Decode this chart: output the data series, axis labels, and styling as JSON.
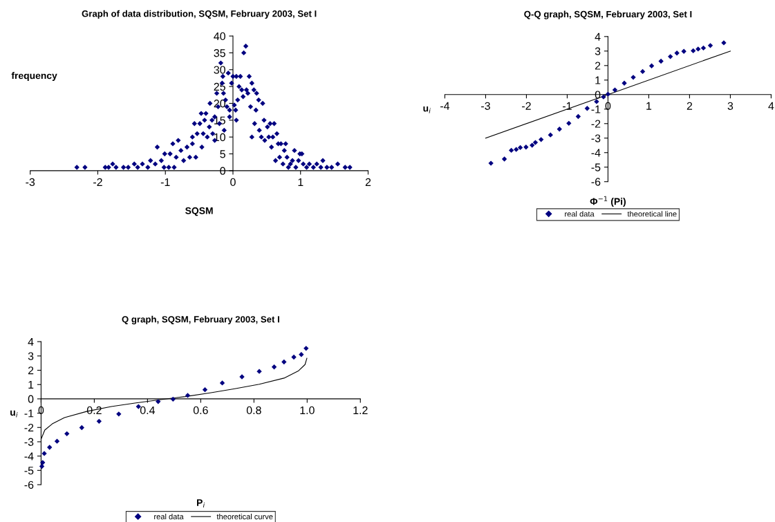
{
  "chart_data": [
    {
      "type": "scatter",
      "title": "Graph of data distribution, SQSM, February 2003, Set I",
      "xlabel": "SQSM",
      "ylabel": "frequency",
      "xlim": [
        -3,
        2
      ],
      "xticks": [
        -3,
        -2,
        -1,
        0,
        1,
        2
      ],
      "ylim": [
        0,
        40
      ],
      "yticks": [
        0,
        5,
        10,
        15,
        20,
        25,
        30,
        35,
        40
      ],
      "series": [
        {
          "color": "#000080",
          "marker": "diamond",
          "x": [
            -2.31,
            -2.19,
            -1.89,
            -1.84,
            -1.78,
            -1.73,
            -1.62,
            -1.55,
            -1.46,
            -1.41,
            -1.34,
            -1.26,
            -1.22,
            -1.15,
            -1.12,
            -1.06,
            -1.02,
            -1.01,
            -0.95,
            -0.93,
            -0.89,
            -0.87,
            -0.84,
            -0.81,
            -0.77,
            -0.73,
            -0.68,
            -0.64,
            -0.6,
            -0.6,
            -0.57,
            -0.55,
            -0.53,
            -0.49,
            -0.47,
            -0.46,
            -0.44,
            -0.42,
            -0.4,
            -0.38,
            -0.35,
            -0.34,
            -0.31,
            -0.3,
            -0.27,
            -0.27,
            -0.24,
            -0.22,
            -0.2,
            -0.18,
            -0.16,
            -0.15,
            -0.14,
            -0.13,
            -0.11,
            -0.09,
            -0.07,
            -0.05,
            -0.05,
            -0.02,
            0,
            0.02,
            0.04,
            0.05,
            0.05,
            0.07,
            0.09,
            0.11,
            0.13,
            0.15,
            0.16,
            0.19,
            0.2,
            0.22,
            0.24,
            0.26,
            0.28,
            0.28,
            0.31,
            0.32,
            0.34,
            0.35,
            0.38,
            0.39,
            0.42,
            0.44,
            0.46,
            0.47,
            0.51,
            0.53,
            0.55,
            0.57,
            0.59,
            0.61,
            0.63,
            0.65,
            0.67,
            0.69,
            0.71,
            0.74,
            0.76,
            0.78,
            0.8,
            0.82,
            0.85,
            0.88,
            0.91,
            0.93,
            0.97,
            0.99,
            1.02,
            1.04,
            1.09,
            1.13,
            1.19,
            1.24,
            1.3,
            1.33,
            1.39,
            1.46,
            1.55,
            1.66,
            1.73
          ],
          "values": [
            1,
            1,
            1,
            1,
            2,
            1,
            1,
            1,
            2,
            1,
            2,
            1,
            3,
            2,
            7,
            3,
            1,
            5,
            1,
            5,
            8,
            1,
            4,
            9,
            6,
            3,
            7,
            4,
            8,
            10,
            14,
            4,
            11,
            14,
            17,
            7,
            11,
            15,
            17,
            10,
            13,
            20,
            15,
            11,
            16,
            9,
            23,
            19,
            14,
            32,
            26,
            28,
            23,
            12,
            21,
            19,
            29,
            16,
            18,
            26,
            28,
            19.5,
            18,
            28,
            15,
            21,
            25,
            28,
            24,
            22,
            35,
            37,
            24,
            23,
            28,
            19,
            26,
            10,
            24,
            14,
            18,
            23,
            21,
            12,
            10,
            20,
            15,
            9,
            13,
            10,
            14,
            7,
            10,
            14,
            3,
            11,
            8,
            4,
            8,
            2,
            6,
            8,
            4,
            1,
            2,
            3,
            6,
            1,
            3,
            5,
            5,
            2,
            1,
            2,
            1,
            2,
            1,
            3,
            1,
            1,
            2,
            1,
            1
          ]
        }
      ]
    },
    {
      "type": "scatter",
      "title": "Q-Q graph, SQSM, February 2003, Set I",
      "xlabel": "Φ$^{−1}$ (Pi)",
      "ylabel": "u$_{i}$",
      "xlim": [
        -4,
        4
      ],
      "xticks": [
        -4,
        -3,
        -2,
        -1,
        0,
        1,
        2,
        3,
        4
      ],
      "ylim": [
        -6,
        4
      ],
      "yticks": [
        -6,
        -5,
        -4,
        -3,
        -2,
        -1,
        0,
        1,
        2,
        3,
        4
      ],
      "legend": "bottom",
      "series": [
        {
          "name": "real data",
          "color": "#000080",
          "marker": "diamond",
          "x": [
            -2.87,
            -2.54,
            -2.37,
            -2.25,
            -2.15,
            -2.01,
            -1.86,
            -1.78,
            -1.64,
            -1.41,
            -1.19,
            -0.96,
            -0.73,
            -0.51,
            -0.28,
            -0.11,
            0,
            0.17,
            0.4,
            0.62,
            0.85,
            1.07,
            1.3,
            1.53,
            1.69,
            1.86,
            2.09,
            2.21,
            2.34,
            2.51,
            2.84
          ],
          "values": [
            -4.73,
            -4.44,
            -3.84,
            -3.78,
            -3.65,
            -3.62,
            -3.49,
            -3.3,
            -3.1,
            -2.78,
            -2.38,
            -1.98,
            -1.51,
            -0.95,
            -0.48,
            -0.16,
            0.03,
            0.32,
            0.79,
            1.19,
            1.59,
            1.98,
            2.3,
            2.62,
            2.86,
            2.98,
            3.02,
            3.14,
            3.21,
            3.38,
            3.57
          ]
        },
        {
          "name": "theoretical line",
          "type": "line",
          "color": "#000000",
          "marker": "none",
          "x": [
            -3,
            3
          ],
          "values": [
            -3,
            3
          ]
        }
      ]
    },
    {
      "type": "scatter",
      "title": "Q graph, SQSM, February 2003, Set I",
      "xlabel": "P$_{i}$",
      "ylabel": "u$_{i}$",
      "xlim": [
        0,
        1.2
      ],
      "xticks": [
        0,
        0.2,
        0.4,
        0.6,
        0.8,
        {
          "value": 1,
          "label": "1.0"
        },
        1.2
      ],
      "ylim": [
        -6,
        4
      ],
      "yticks": [
        -6,
        -5,
        -4,
        -3,
        -2,
        -1,
        0,
        1,
        2,
        3,
        4
      ],
      "legend": "bottom",
      "series": [
        {
          "name": "real data",
          "color": "#000080",
          "marker": "diamond",
          "x": [
            0.003,
            0.006,
            0.012,
            0.032,
            0.06,
            0.097,
            0.153,
            0.218,
            0.292,
            0.366,
            0.44,
            0.496,
            0.551,
            0.616,
            0.681,
            0.755,
            0.82,
            0.876,
            0.913,
            0.95,
            0.978,
            0.996
          ],
          "values": [
            -4.72,
            -4.45,
            -3.82,
            -3.39,
            -2.96,
            -2.44,
            -2.01,
            -1.57,
            -1.06,
            -0.54,
            -0.19,
            -0.02,
            0.24,
            0.64,
            1.11,
            1.54,
            1.92,
            2.23,
            2.58,
            2.92,
            3.1,
            3.53
          ]
        },
        {
          "name": "theoretical curve",
          "type": "line",
          "color": "#000000",
          "marker": "none",
          "x": [
            0.0,
            0.014,
            0.042,
            0.088,
            0.171,
            0.264,
            0.357,
            0.45,
            0.542,
            0.635,
            0.728,
            0.82,
            0.913,
            0.968,
            0.992,
            0.999
          ],
          "values": [
            -2.82,
            -2.18,
            -1.75,
            -1.31,
            -0.88,
            -0.54,
            -0.28,
            -0.05,
            0.16,
            0.42,
            0.71,
            1.02,
            1.45,
            1.97,
            2.4,
            2.84
          ]
        }
      ]
    }
  ]
}
